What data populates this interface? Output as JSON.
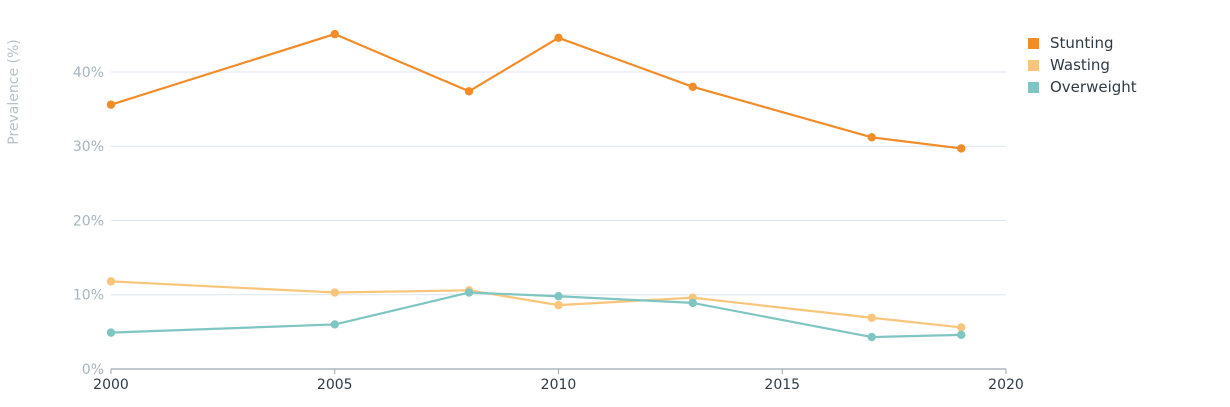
{
  "chart_data": {
    "type": "line",
    "ylabel": "Prevalence (%)",
    "xlabel": "",
    "xlim": [
      2000,
      2020
    ],
    "ylim": [
      0,
      47
    ],
    "x_ticks": [
      2000,
      2005,
      2010,
      2015,
      2020
    ],
    "x_tick_labels": [
      "2000",
      "2005",
      "2010",
      "2015",
      "2020"
    ],
    "y_ticks": [
      0,
      10,
      20,
      30,
      40
    ],
    "y_tick_labels": [
      "0%",
      "10%",
      "20%",
      "30%",
      "40%"
    ],
    "grid": "horizontal",
    "legend_position": "top-right",
    "series": [
      {
        "name": "Stunting",
        "color": "#f28c28",
        "x": [
          2000,
          2005,
          2008,
          2010,
          2013,
          2017,
          2019
        ],
        "y": [
          35.6,
          45.1,
          37.4,
          44.6,
          38.0,
          31.2,
          29.7
        ]
      },
      {
        "name": "Wasting",
        "color": "#f9c57a",
        "x": [
          2000,
          2005,
          2008,
          2010,
          2013,
          2017,
          2019
        ],
        "y": [
          11.8,
          10.3,
          10.6,
          8.6,
          9.6,
          6.9,
          5.6
        ]
      },
      {
        "name": "Overweight",
        "color": "#7fc5c2",
        "x": [
          2000,
          2005,
          2008,
          2010,
          2013,
          2017,
          2019
        ],
        "y": [
          4.9,
          6.0,
          10.3,
          9.8,
          8.9,
          4.3,
          4.6
        ]
      }
    ]
  },
  "colors": {
    "grid": "#dce6ec",
    "axis": "#9aa9b2",
    "tick_text": "#2f3b45",
    "y_tick_text": "#a6b5bd",
    "ylabel_text": "#b5c2c8"
  }
}
